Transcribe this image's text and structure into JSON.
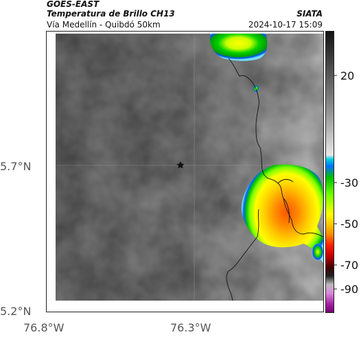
{
  "header": {
    "satellite": "GOES-EAST",
    "product": "Temperatura de Brillo CH13",
    "region": "Vía Medellín - Quibdó 50km",
    "source": "SIATA",
    "datetime": "2024-10-17 15:09"
  },
  "axes": {
    "lat_labels": [
      "5.7°N",
      "5.2°N"
    ],
    "lon_labels": [
      "76.8°W",
      "76.3°W"
    ]
  },
  "colorbar": {
    "tick_labels": [
      "20",
      "-30",
      "-50",
      "-70",
      "-90"
    ]
  },
  "marker": {
    "icon": "star-icon"
  }
}
